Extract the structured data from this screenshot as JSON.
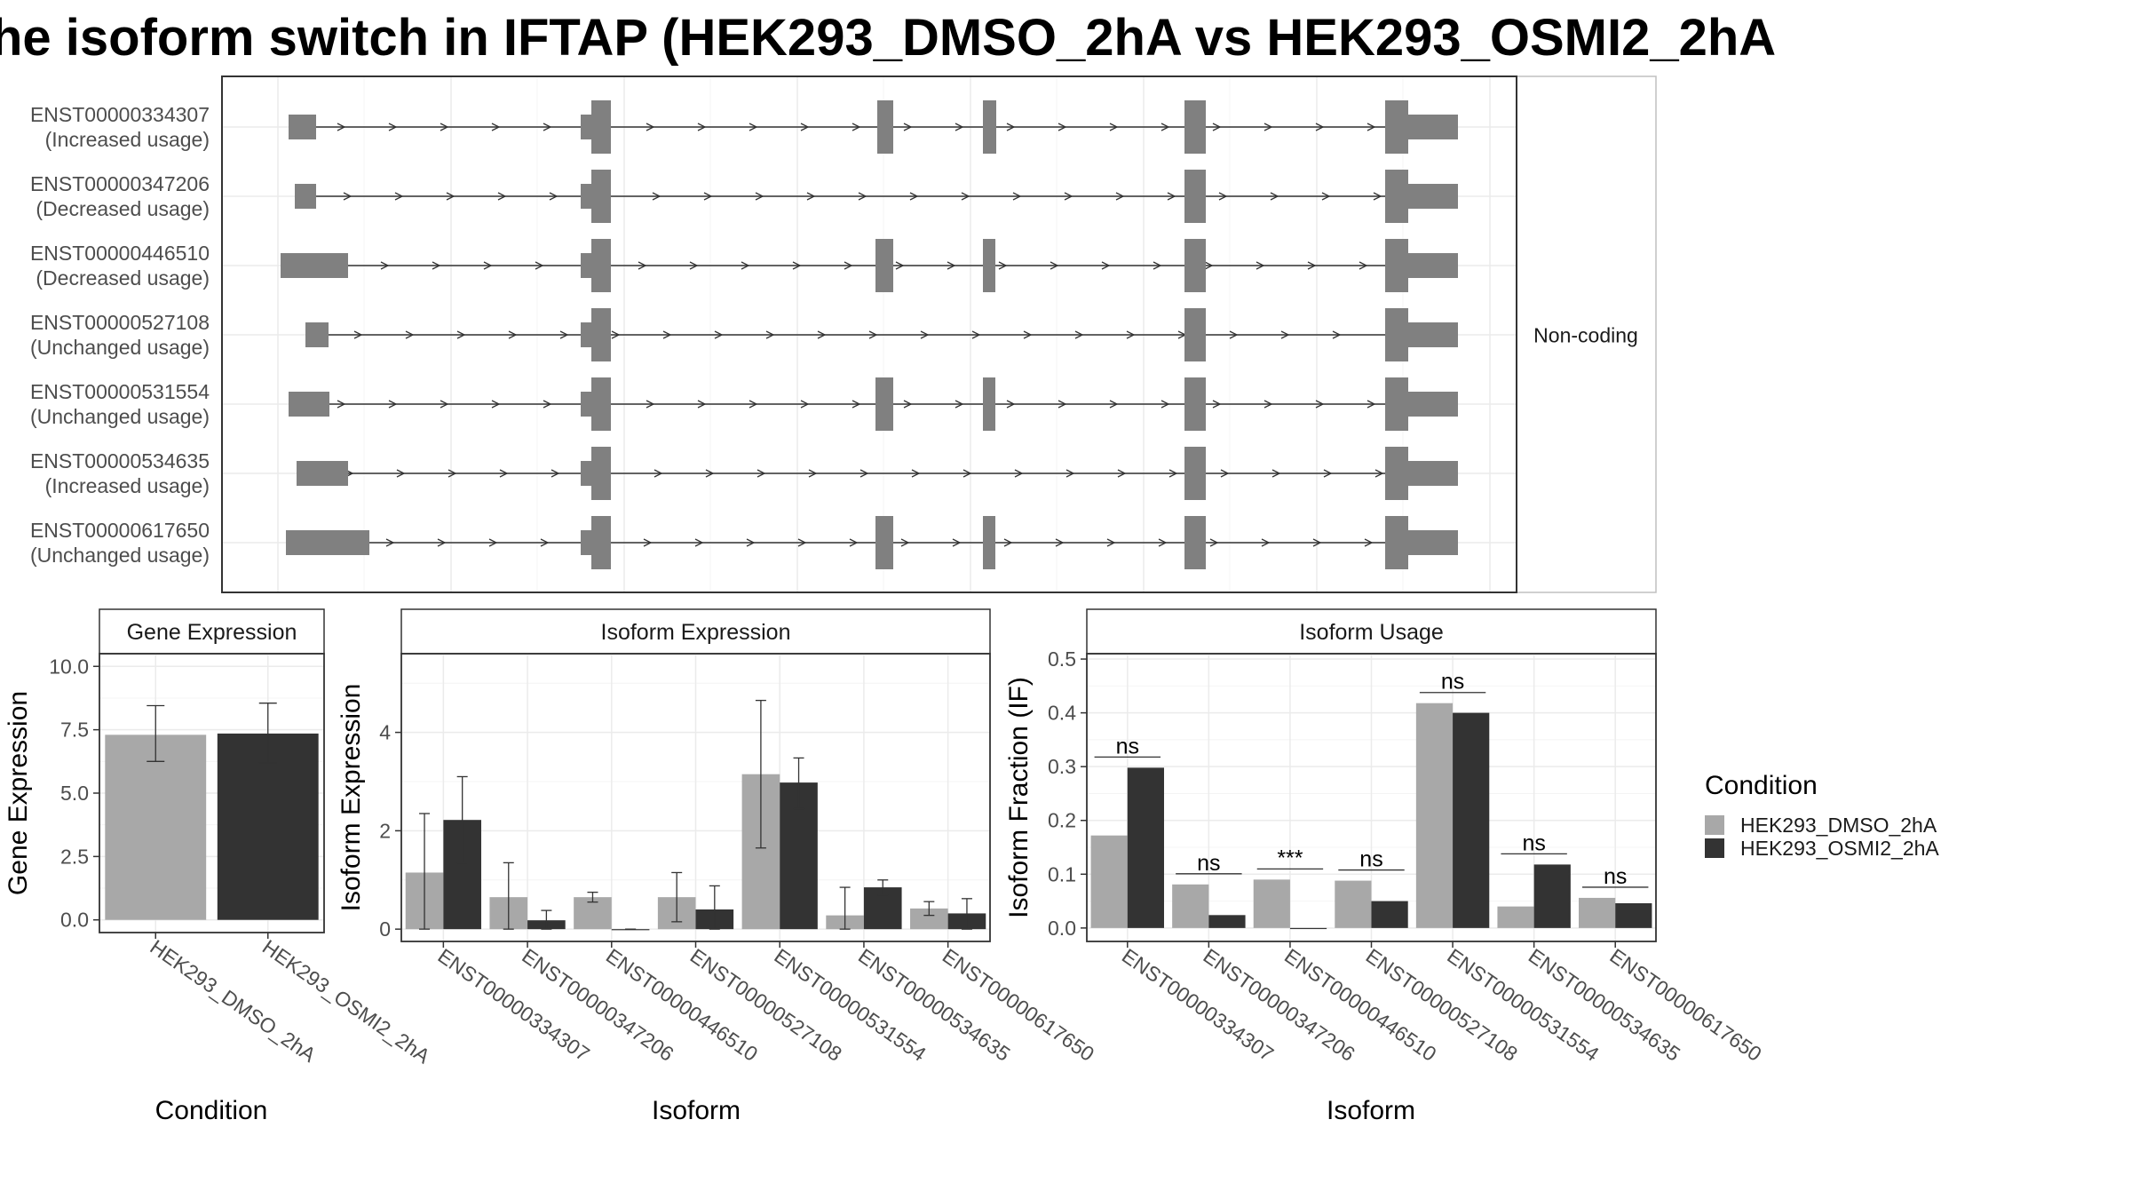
{
  "title": "he isoform switch in IFTAP (HEK293_DMSO_2hA vs HEK293_OSMI2_2hA",
  "colors": {
    "dmso": "#a8a8a8",
    "osmi": "#333333",
    "exon": "#808080",
    "grid": "#ebebeb"
  },
  "structure": {
    "facet_label": "Non-coding",
    "transcripts": [
      {
        "id": "ENST00000334307",
        "usage": "(Increased usage)"
      },
      {
        "id": "ENST00000347206",
        "usage": "(Decreased usage)"
      },
      {
        "id": "ENST00000446510",
        "usage": "(Decreased usage)"
      },
      {
        "id": "ENST00000527108",
        "usage": "(Unchanged usage)"
      },
      {
        "id": "ENST00000531554",
        "usage": "(Unchanged usage)"
      },
      {
        "id": "ENST00000534635",
        "usage": "(Increased usage)"
      },
      {
        "id": "ENST00000617650",
        "usage": "(Unchanged usage)"
      }
    ]
  },
  "legend": {
    "title": "Condition",
    "items": [
      {
        "label": "HEK293_DMSO_2hA",
        "color": "#a8a8a8"
      },
      {
        "label": "HEK293_OSMI2_2hA",
        "color": "#333333"
      }
    ]
  },
  "chart_data": [
    {
      "type": "bar",
      "panel_title": "Gene Expression",
      "xlabel": "Condition",
      "ylabel": "Gene Expression",
      "categories": [
        "HEK293_DMSO_2hA",
        "HEK293_OSMI2_2hA"
      ],
      "values": [
        7.3,
        7.35
      ],
      "errors": [
        [
          6.25,
          8.45
        ],
        [
          6.2,
          8.55
        ]
      ],
      "ylim": [
        -0.5,
        10.5
      ],
      "yticks": [
        "0.0",
        "2.5",
        "5.0",
        "7.5",
        "10.0"
      ]
    },
    {
      "type": "bar",
      "panel_title": "Isoform Expression",
      "xlabel": "Isoform",
      "ylabel": "Isoform Expression",
      "categories": [
        "ENST00000334307",
        "ENST00000347206",
        "ENST00000446510",
        "ENST00000527108",
        "ENST00000531554",
        "ENST00000534635",
        "ENST00000617650"
      ],
      "series": [
        {
          "name": "HEK293_DMSO_2hA",
          "values": [
            1.15,
            0.65,
            0.65,
            0.65,
            3.15,
            0.28,
            0.42
          ],
          "errors": [
            [
              0.0,
              2.35
            ],
            [
              0.0,
              1.35
            ],
            [
              0.55,
              0.75
            ],
            [
              0.15,
              1.15
            ],
            [
              1.65,
              4.65
            ],
            [
              0.0,
              0.85
            ],
            [
              0.28,
              0.56
            ]
          ]
        },
        {
          "name": "HEK293_OSMI2_2hA",
          "values": [
            2.22,
            0.18,
            0.0,
            0.4,
            2.98,
            0.85,
            0.32
          ],
          "errors": [
            [
              1.35,
              3.1
            ],
            [
              0.0,
              0.38
            ],
            [
              0.0,
              0.0
            ],
            [
              0.0,
              0.88
            ],
            [
              2.45,
              3.48
            ],
            [
              0.7,
              1.0
            ],
            [
              0.0,
              0.62
            ]
          ]
        }
      ],
      "ylim": [
        -0.25,
        5.6
      ],
      "yticks": [
        "0",
        "2",
        "4"
      ]
    },
    {
      "type": "bar",
      "panel_title": "Isoform Usage",
      "xlabel": "Isoform",
      "ylabel": "Isoform Fraction (IF)",
      "categories": [
        "ENST00000334307",
        "ENST00000347206",
        "ENST00000446510",
        "ENST00000527108",
        "ENST00000531554",
        "ENST00000534635",
        "ENST00000617650"
      ],
      "series": [
        {
          "name": "HEK293_DMSO_2hA",
          "values": [
            0.172,
            0.081,
            0.09,
            0.088,
            0.418,
            0.04,
            0.056
          ]
        },
        {
          "name": "HEK293_OSMI2_2hA",
          "values": [
            0.298,
            0.024,
            0.0,
            0.05,
            0.4,
            0.118,
            0.046
          ]
        }
      ],
      "significance": [
        "ns",
        "ns",
        "***",
        "ns",
        "ns",
        "ns",
        "ns"
      ],
      "ylim": [
        -0.025,
        0.51
      ],
      "yticks": [
        "0.0",
        "0.1",
        "0.2",
        "0.3",
        "0.4",
        "0.5"
      ]
    }
  ]
}
